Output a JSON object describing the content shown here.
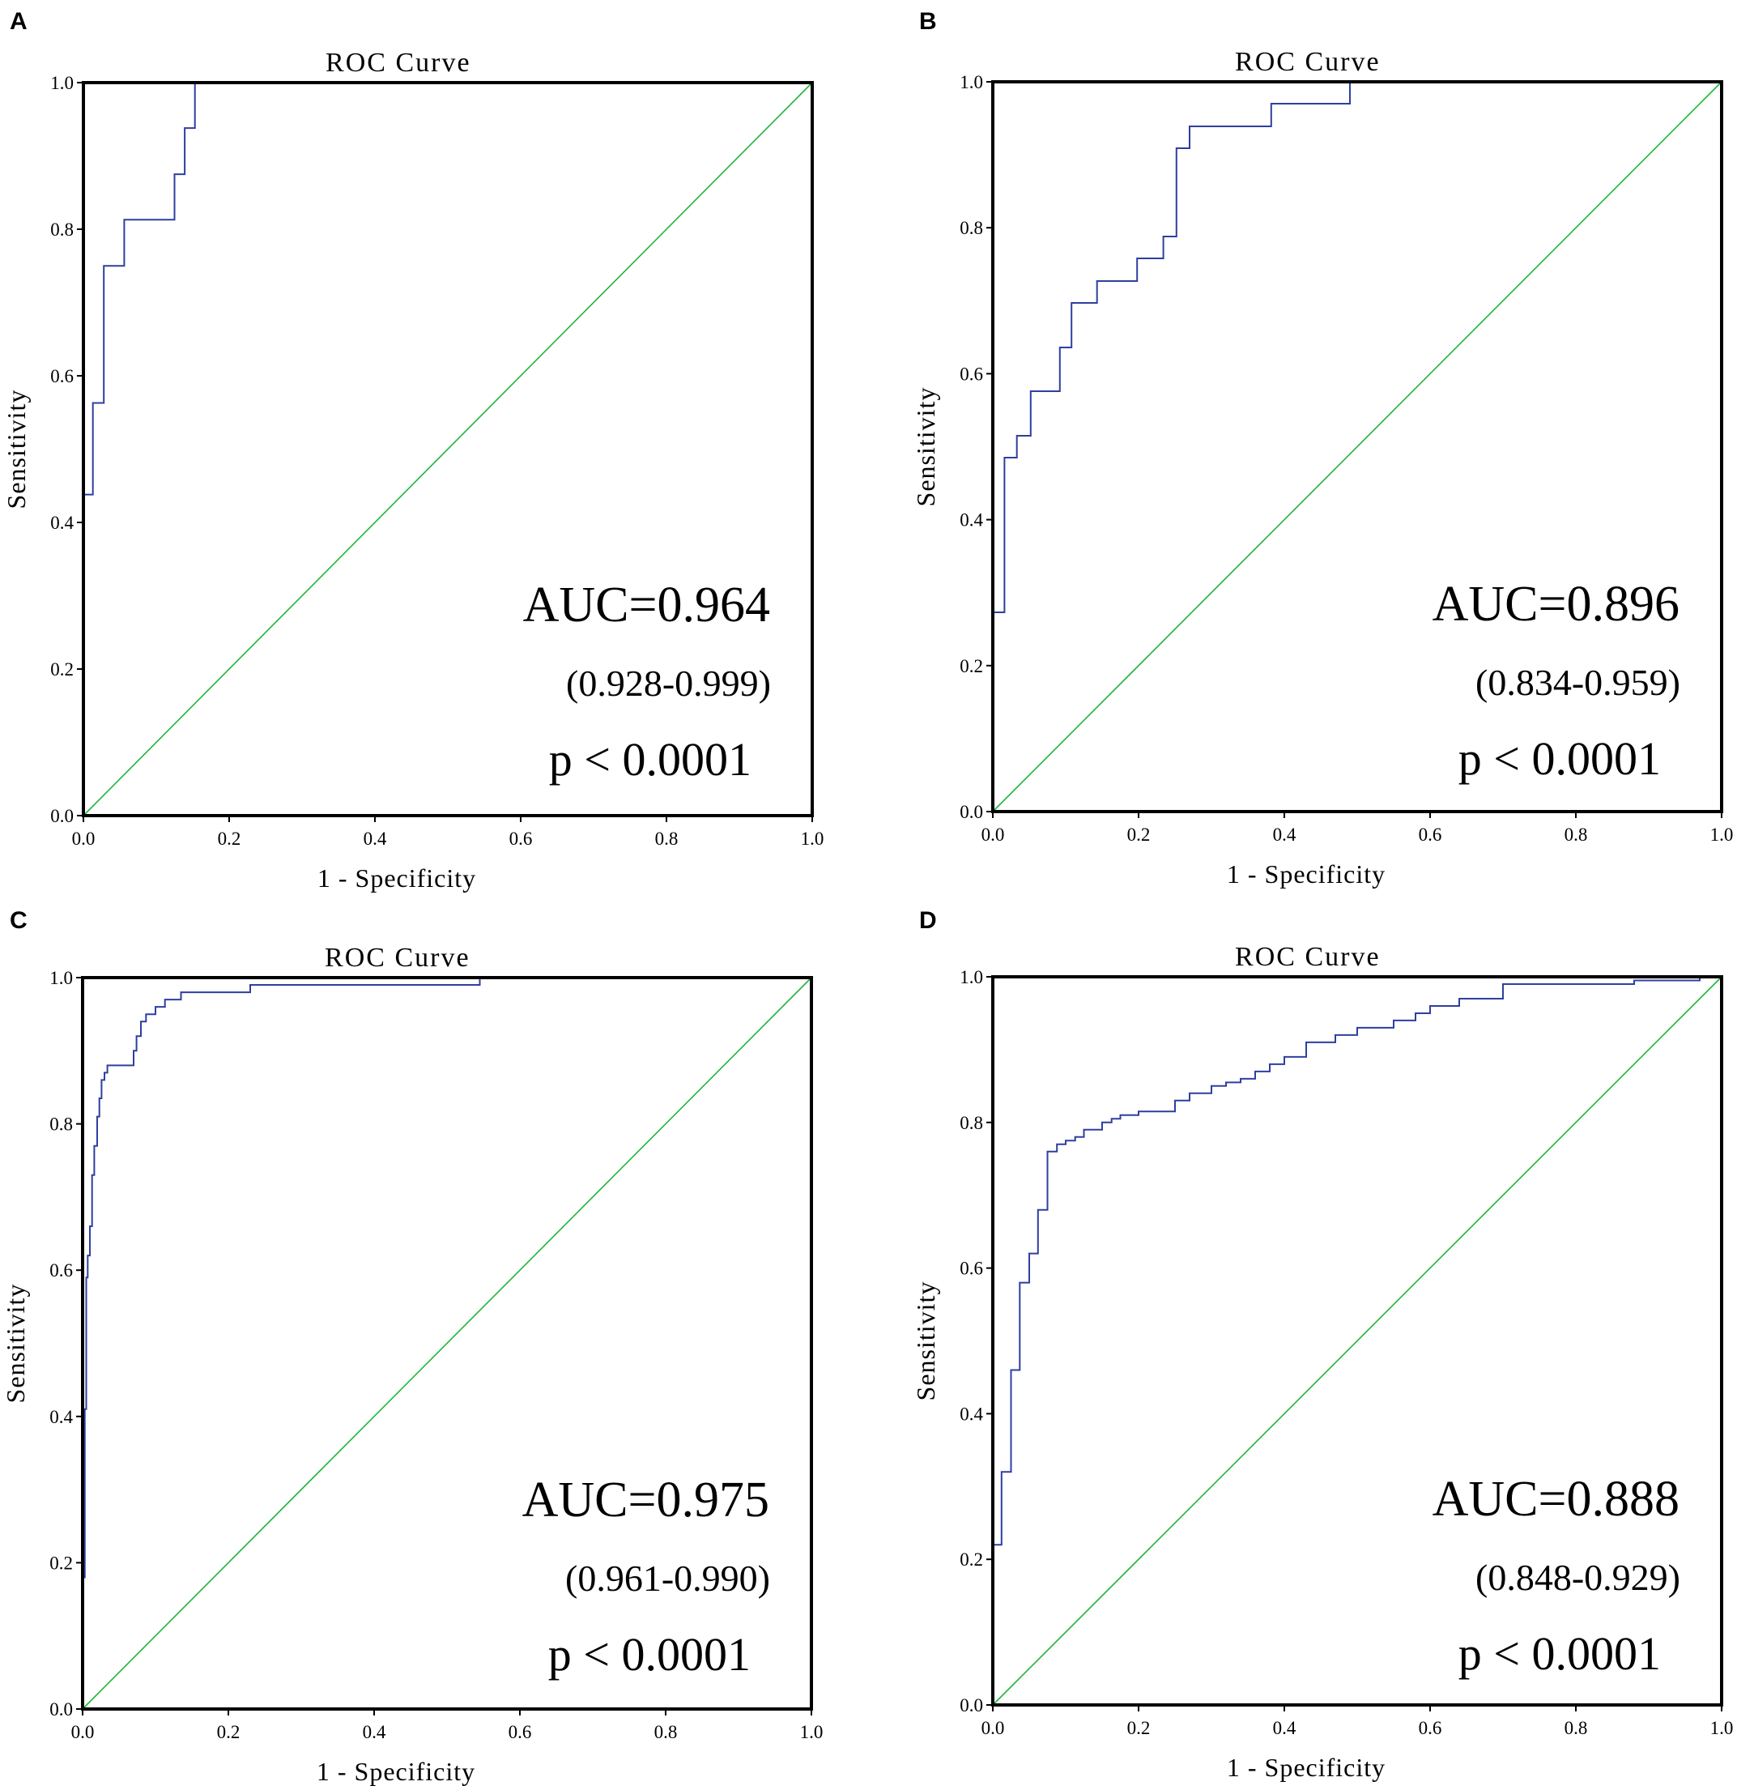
{
  "colors": {
    "roc_curve": "#2e3fa0",
    "reference_line": "#1fb53a",
    "frame": "#000000"
  },
  "chart_data": [
    {
      "panel": "A",
      "type": "line",
      "title": "ROC Curve",
      "xlabel": "1 - Specificity",
      "ylabel": "Sensitivity",
      "xlim": [
        0,
        1
      ],
      "ylim": [
        0,
        1
      ],
      "xticks": [
        "0.0",
        "0.2",
        "0.4",
        "0.6",
        "0.8",
        "1.0"
      ],
      "yticks": [
        "0.0",
        "0.2",
        "0.4",
        "0.6",
        "0.8",
        "1.0"
      ],
      "auc_text": "AUC=0.964",
      "ci_text": "(0.928-0.999)",
      "p_text": "p < 0.0001",
      "series": [
        {
          "name": "ROC",
          "x": [
            0,
            0,
            0.013,
            0.013,
            0.028,
            0.028,
            0.056,
            0.056,
            0.125,
            0.125,
            0.139,
            0.139,
            0.153,
            0.153
          ],
          "y": [
            0,
            0.438,
            0.438,
            0.563,
            0.563,
            0.75,
            0.75,
            0.813,
            0.813,
            0.875,
            0.875,
            0.938,
            0.938,
            1.0
          ]
        },
        {
          "name": "Reference",
          "x": [
            0,
            1
          ],
          "y": [
            0,
            1
          ]
        }
      ]
    },
    {
      "panel": "B",
      "type": "line",
      "title": "ROC Curve",
      "xlabel": "1 - Specificity",
      "ylabel": "Sensitivity",
      "xlim": [
        0,
        1
      ],
      "ylim": [
        0,
        1
      ],
      "xticks": [
        "0.0",
        "0.2",
        "0.4",
        "0.6",
        "0.8",
        "1.0"
      ],
      "yticks": [
        "0.0",
        "0.2",
        "0.4",
        "0.6",
        "0.8",
        "1.0"
      ],
      "auc_text": "AUC=0.896",
      "ci_text": "(0.834-0.959)",
      "p_text": "p < 0.0001",
      "series": [
        {
          "name": "ROC",
          "x": [
            0,
            0,
            0.016,
            0.016,
            0.033,
            0.033,
            0.052,
            0.052,
            0.092,
            0.092,
            0.108,
            0.108,
            0.143,
            0.143,
            0.198,
            0.198,
            0.234,
            0.234,
            0.252,
            0.252,
            0.27,
            0.27,
            0.382,
            0.382,
            0.49,
            0.49
          ],
          "y": [
            0,
            0.273,
            0.273,
            0.485,
            0.485,
            0.515,
            0.515,
            0.576,
            0.576,
            0.636,
            0.636,
            0.697,
            0.697,
            0.727,
            0.727,
            0.758,
            0.758,
            0.788,
            0.788,
            0.909,
            0.909,
            0.939,
            0.939,
            0.97,
            0.97,
            1.0
          ]
        },
        {
          "name": "Reference",
          "x": [
            0,
            1
          ],
          "y": [
            0,
            1
          ]
        }
      ]
    },
    {
      "panel": "C",
      "type": "line",
      "title": "ROC Curve",
      "xlabel": "1 - Specificity",
      "ylabel": "Sensitivity",
      "xlim": [
        0,
        1
      ],
      "ylim": [
        0,
        1
      ],
      "xticks": [
        "0.0",
        "0.2",
        "0.4",
        "0.6",
        "0.8",
        "1.0"
      ],
      "yticks": [
        "0.0",
        "0.2",
        "0.4",
        "0.6",
        "0.8",
        "1.0"
      ],
      "auc_text": "AUC=0.975",
      "ci_text": "(0.961-0.990)",
      "p_text": "p < 0.0001",
      "series": [
        {
          "name": "ROC",
          "x": [
            0,
            0,
            0.003,
            0.003,
            0.005,
            0.005,
            0.007,
            0.007,
            0.01,
            0.01,
            0.013,
            0.013,
            0.016,
            0.016,
            0.02,
            0.02,
            0.023,
            0.023,
            0.026,
            0.026,
            0.03,
            0.03,
            0.034,
            0.034,
            0.07,
            0.07,
            0.074,
            0.074,
            0.08,
            0.08,
            0.087,
            0.087,
            0.1,
            0.1,
            0.113,
            0.113,
            0.135,
            0.135,
            0.23,
            0.23,
            0.545,
            0.545
          ],
          "y": [
            0,
            0.18,
            0.18,
            0.41,
            0.41,
            0.59,
            0.59,
            0.62,
            0.62,
            0.66,
            0.66,
            0.73,
            0.73,
            0.77,
            0.77,
            0.81,
            0.81,
            0.835,
            0.835,
            0.86,
            0.86,
            0.87,
            0.87,
            0.88,
            0.88,
            0.9,
            0.9,
            0.92,
            0.92,
            0.94,
            0.94,
            0.95,
            0.95,
            0.96,
            0.96,
            0.97,
            0.97,
            0.98,
            0.98,
            0.99,
            0.99,
            1.0
          ]
        },
        {
          "name": "Reference",
          "x": [
            0,
            1
          ],
          "y": [
            0,
            1
          ]
        }
      ]
    },
    {
      "panel": "D",
      "type": "line",
      "title": "ROC Curve",
      "xlabel": "1 - Specificity",
      "ylabel": "Sensitivity",
      "xlim": [
        0,
        1
      ],
      "ylim": [
        0,
        1
      ],
      "xticks": [
        "0.0",
        "0.2",
        "0.4",
        "0.6",
        "0.8",
        "1.0"
      ],
      "yticks": [
        "0.0",
        "0.2",
        "0.4",
        "0.6",
        "0.8",
        "1.0"
      ],
      "auc_text": "AUC=0.888",
      "ci_text": "(0.848-0.929)",
      "p_text": "p < 0.0001",
      "series": [
        {
          "name": "ROC",
          "x": [
            0,
            0,
            0.012,
            0.012,
            0.025,
            0.025,
            0.037,
            0.037,
            0.05,
            0.05,
            0.062,
            0.062,
            0.075,
            0.075,
            0.088,
            0.088,
            0.1,
            0.1,
            0.113,
            0.113,
            0.125,
            0.125,
            0.15,
            0.15,
            0.163,
            0.163,
            0.175,
            0.175,
            0.2,
            0.2,
            0.25,
            0.25,
            0.27,
            0.27,
            0.3,
            0.3,
            0.32,
            0.32,
            0.34,
            0.34,
            0.36,
            0.36,
            0.38,
            0.38,
            0.4,
            0.4,
            0.43,
            0.43,
            0.47,
            0.47,
            0.5,
            0.5,
            0.55,
            0.55,
            0.58,
            0.58,
            0.6,
            0.6,
            0.64,
            0.64,
            0.7,
            0.7,
            0.88,
            0.88,
            0.97,
            0.97
          ],
          "y": [
            0,
            0.22,
            0.22,
            0.32,
            0.32,
            0.46,
            0.46,
            0.58,
            0.58,
            0.62,
            0.62,
            0.68,
            0.68,
            0.76,
            0.76,
            0.77,
            0.77,
            0.775,
            0.775,
            0.78,
            0.78,
            0.79,
            0.79,
            0.8,
            0.8,
            0.805,
            0.805,
            0.81,
            0.81,
            0.815,
            0.815,
            0.83,
            0.83,
            0.84,
            0.84,
            0.85,
            0.85,
            0.855,
            0.855,
            0.86,
            0.86,
            0.87,
            0.87,
            0.88,
            0.88,
            0.89,
            0.89,
            0.91,
            0.91,
            0.92,
            0.92,
            0.93,
            0.93,
            0.94,
            0.94,
            0.95,
            0.95,
            0.96,
            0.96,
            0.97,
            0.97,
            0.99,
            0.99,
            0.995,
            0.995,
            1.0
          ]
        },
        {
          "name": "Reference",
          "x": [
            0,
            1
          ],
          "y": [
            0,
            1
          ]
        }
      ]
    }
  ]
}
